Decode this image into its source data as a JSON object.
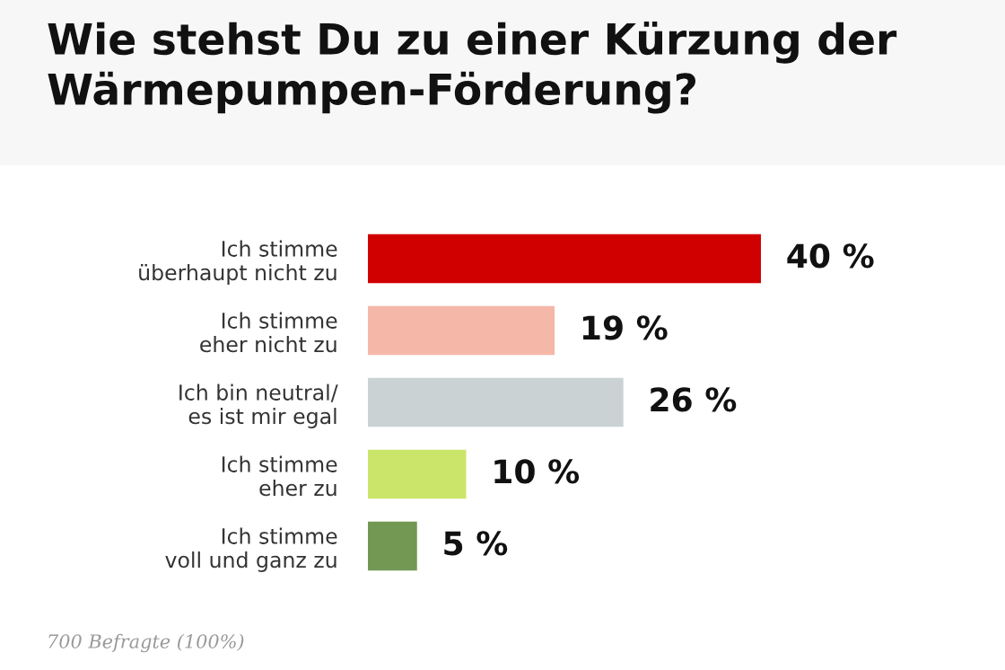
{
  "chart_data": {
    "type": "bar",
    "orientation": "horizontal",
    "title": "Wie stehst Du zu einer Kürzung der\nWärmepumpen-Förderung?",
    "categories": [
      "Ich stimme\nüberhaupt nicht zu",
      "Ich stimme\neher nicht zu",
      "Ich bin neutral/\nes ist mir egal",
      "Ich stimme\neher zu",
      "Ich stimme\nvoll und ganz zu"
    ],
    "values": [
      40,
      19,
      26,
      10,
      5
    ],
    "colors": [
      "#d10000",
      "#f5b7a8",
      "#cbd2d3",
      "#cbe56a",
      "#739853"
    ],
    "value_labels": [
      "40 %",
      "19 %",
      "26 %",
      "10 %",
      "5 %"
    ],
    "annotations": [
      "700 Befragte (100%)"
    ],
    "grid": false,
    "legend": false
  }
}
